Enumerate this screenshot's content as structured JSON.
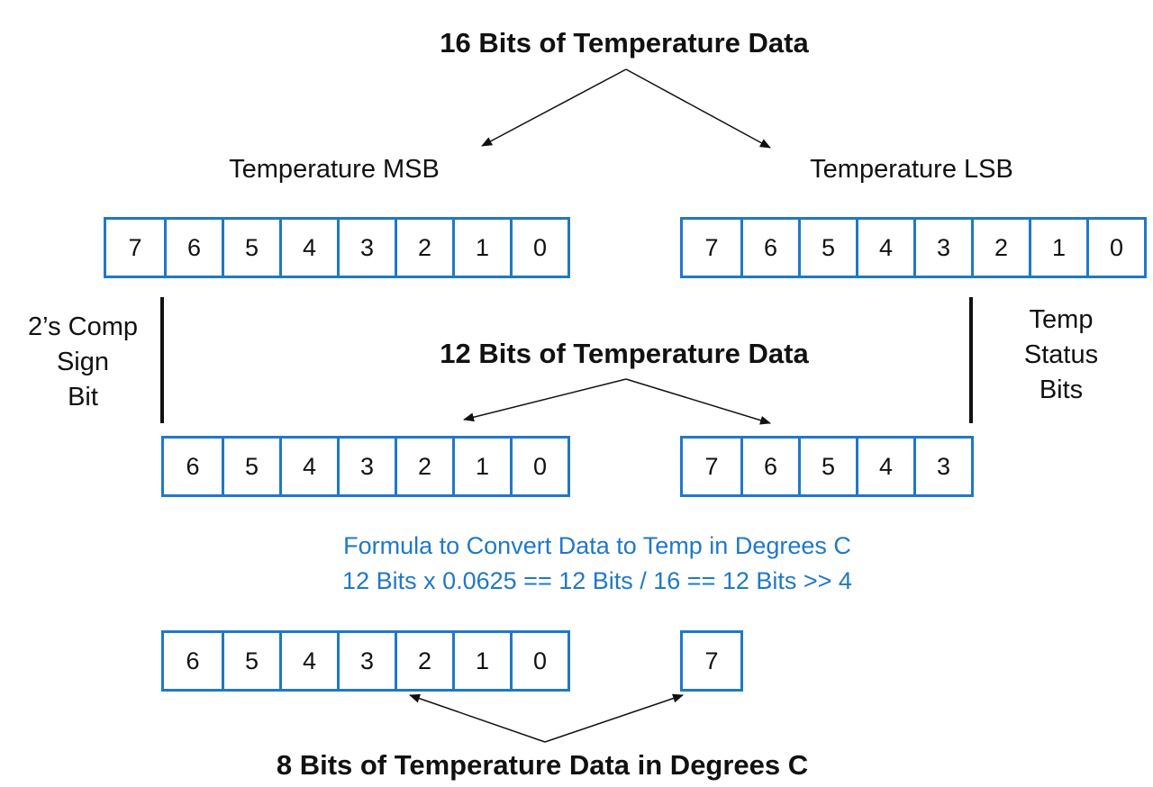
{
  "titles": {
    "top": "16 Bits of Temperature Data",
    "middle": "12 Bits of Temperature Data",
    "bottom": "8 Bits of Temperature Data in Degrees C"
  },
  "labels": {
    "msb": "Temperature MSB",
    "lsb": "Temperature LSB",
    "sign_line1": "2’s Comp",
    "sign_line2": "Sign",
    "sign_line3": "Bit",
    "status_line1": "Temp",
    "status_line2": "Status",
    "status_line3": "Bits"
  },
  "formula": {
    "line1": "Formula to Convert Data to Temp in Degrees C",
    "line2": "12 Bits x 0.0625 == 12 Bits / 16 == 12 Bits >> 4"
  },
  "registers": {
    "msb_full": [
      "7",
      "6",
      "5",
      "4",
      "3",
      "2",
      "1",
      "0"
    ],
    "lsb_full": [
      "7",
      "6",
      "5",
      "4",
      "3",
      "2",
      "1",
      "0"
    ],
    "msb_12": [
      "6",
      "5",
      "4",
      "3",
      "2",
      "1",
      "0"
    ],
    "lsb_12": [
      "7",
      "6",
      "5",
      "4",
      "3"
    ],
    "result_low": [
      "6",
      "5",
      "4",
      "3",
      "2",
      "1",
      "0"
    ],
    "result_high": [
      "7"
    ]
  },
  "colors": {
    "accent": "#1f78c8",
    "text": "#111111"
  }
}
